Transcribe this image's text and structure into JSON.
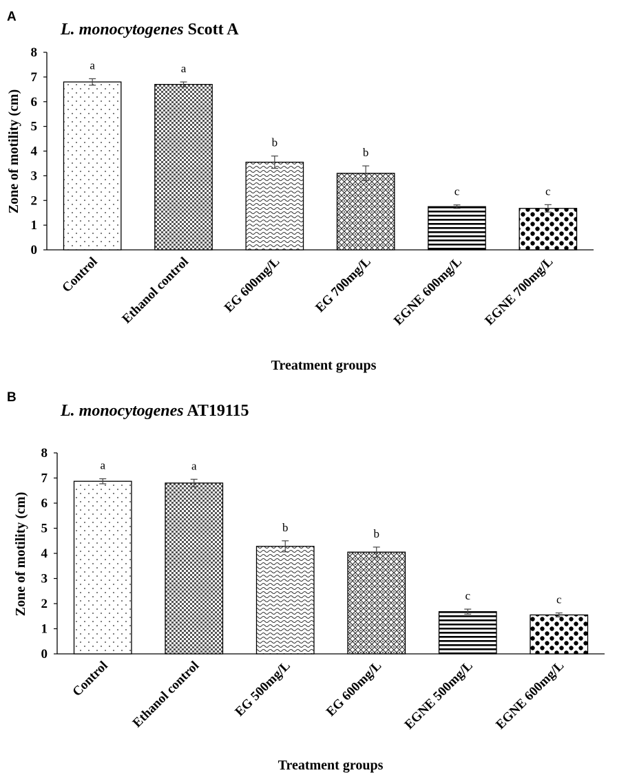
{
  "panel_labels": [
    "A",
    "B"
  ],
  "chart_data": [
    {
      "type": "bar",
      "title_italic": "L. monocytogenes",
      "title_rest": " Scott A",
      "xlabel": "Treatment groups",
      "ylabel": "Zone of motility (cm)",
      "ylim": [
        0,
        8
      ],
      "yticks": [
        "0",
        "1",
        "2",
        "3",
        "4",
        "5",
        "6",
        "7",
        "8"
      ],
      "grid": false,
      "categories": [
        "Control",
        "Ethanol control",
        "EG 600mg/L",
        "EG 700mg/L",
        "EGNE 600mg/L",
        "EGNE 700mg/L"
      ],
      "values": [
        6.8,
        6.7,
        3.55,
        3.1,
        1.75,
        1.68
      ],
      "errors": [
        0.13,
        0.1,
        0.25,
        0.3,
        0.07,
        0.15
      ],
      "significance": [
        "a",
        "a",
        "b",
        "b",
        "c",
        "c"
      ]
    },
    {
      "type": "bar",
      "title_italic": "L. monocytogenes",
      "title_rest": " AT19115",
      "xlabel": "Treatment groups",
      "ylabel": "Zone of motility (cm)",
      "ylim": [
        0,
        8
      ],
      "yticks": [
        "0",
        "1",
        "2",
        "3",
        "4",
        "5",
        "6",
        "7",
        "8"
      ],
      "grid": false,
      "categories": [
        "Control",
        "Ethanol control",
        "EG 500mg/L",
        "EG 600mg/L",
        "EGNE 500mg/L",
        "EGNE 600mg/L"
      ],
      "values": [
        6.87,
        6.8,
        4.28,
        4.05,
        1.68,
        1.55
      ],
      "errors": [
        0.1,
        0.15,
        0.22,
        0.2,
        0.1,
        0.08
      ],
      "significance": [
        "a",
        "a",
        "b",
        "b",
        "c",
        "c"
      ]
    }
  ]
}
